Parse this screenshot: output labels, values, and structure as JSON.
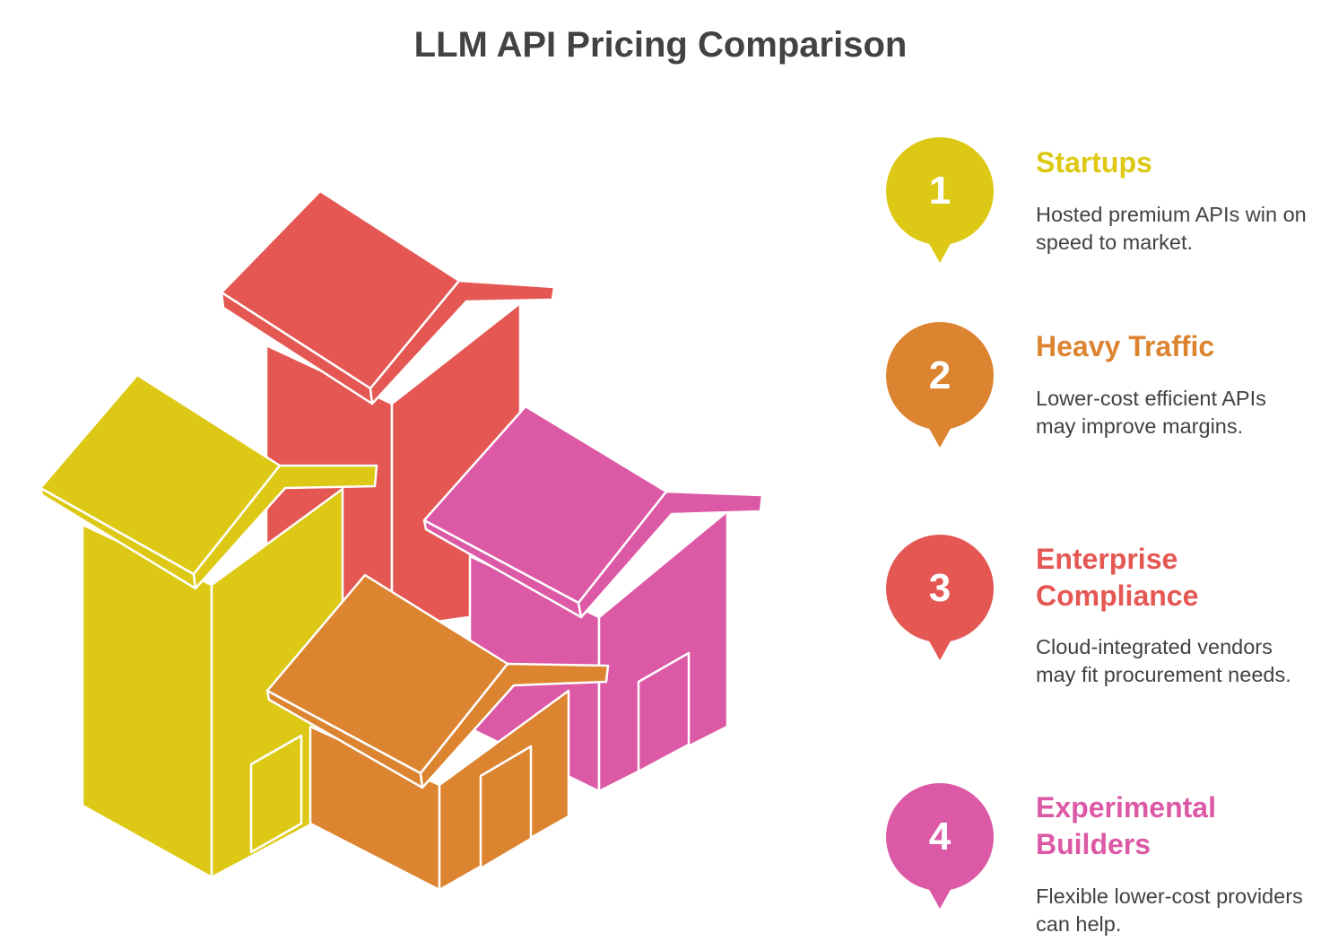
{
  "title": "LLM API Pricing Comparison",
  "colors": {
    "yellow": "#DDC915",
    "orange": "#DC8430",
    "red": "#E45753",
    "pink": "#DC59A6",
    "text": "#424242"
  },
  "items": [
    {
      "number": "1",
      "title": "Startups",
      "description": "Hosted premium APIs win on speed to market.",
      "color": "#DDC915"
    },
    {
      "number": "2",
      "title": "Heavy Traffic",
      "description": "Lower-cost efficient APIs may improve margins.",
      "color": "#DC8430"
    },
    {
      "number": "3",
      "title": "Enterprise Compliance",
      "description": "Cloud-integrated vendors may fit procurement needs.",
      "color": "#E45753"
    },
    {
      "number": "4",
      "title": "Experimental Builders",
      "description": "Flexible lower-cost providers can help.",
      "color": "#DC59A6"
    }
  ]
}
